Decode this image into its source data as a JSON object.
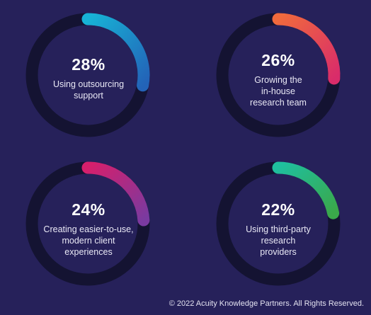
{
  "chart_data": [
    {
      "type": "pie",
      "value": 28,
      "value_label": "28%",
      "description": "Using outsourcing\nsupport",
      "gradient": [
        "#17b3d6",
        "#2363b8"
      ]
    },
    {
      "type": "pie",
      "value": 26,
      "value_label": "26%",
      "description": "Growing the\nin-house\nresearch team",
      "gradient": [
        "#f06a3d",
        "#d92c6a"
      ]
    },
    {
      "type": "pie",
      "value": 24,
      "value_label": "24%",
      "description": "Creating easier-to-use,\nmodern client\nexperiences",
      "gradient": [
        "#d61f6c",
        "#7a3aa0"
      ]
    },
    {
      "type": "pie",
      "value": 22,
      "value_label": "22%",
      "description": "Using third-party\nresearch\nproviders",
      "gradient": [
        "#1fbf9e",
        "#3aa84a"
      ]
    }
  ],
  "colors": {
    "background": "#26215a",
    "track": "#141332"
  },
  "footer": {
    "copyright": "© 2022 Acuity Knowledge Partners. All Rights Reserved."
  }
}
